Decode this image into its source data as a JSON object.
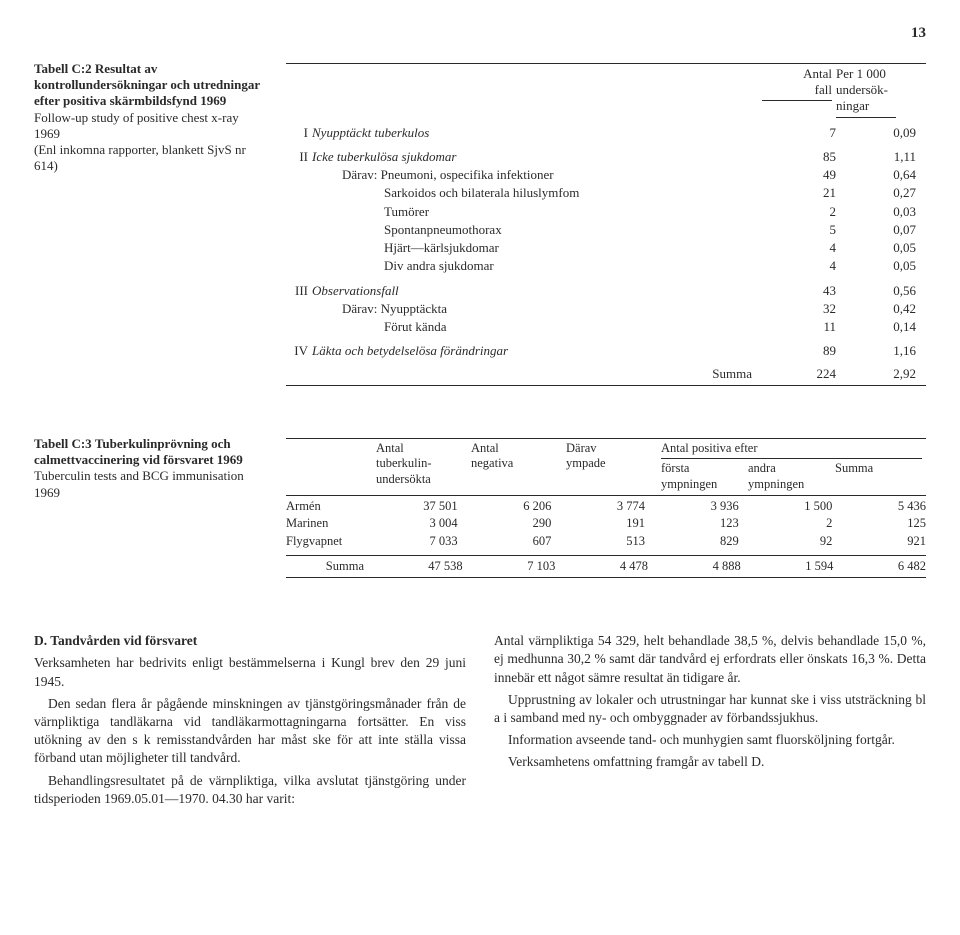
{
  "page_number": "13",
  "tableC2": {
    "label_prefix": "Tabell C:2",
    "label_rest": "Resultat av kontrollundersökningar och utredningar efter positiva skärmbildsfynd 1969",
    "subtitle": "Follow-up study of positive chest x-ray 1969",
    "note": "(Enl inkomna rapporter, blankett SjvS nr 614)",
    "col1_a": "Antal",
    "col1_b": "fall",
    "col2_a": "Per 1 000",
    "col2_b": "undersök-",
    "col2_c": "ningar",
    "groups": [
      {
        "roman": "I",
        "label": "Nyupptäckt tuberkulos",
        "n1": "7",
        "n2": "0,09",
        "subs": []
      },
      {
        "roman": "II",
        "label": "Icke tuberkulösa sjukdomar",
        "n1": "85",
        "n2": "1,11",
        "subs": [
          {
            "label": "Därav: Pneumoni, ospecifika infektioner",
            "n1": "49",
            "n2": "0,64"
          },
          {
            "label": "Sarkoidos och bilaterala hiluslymfom",
            "n1": "21",
            "n2": "0,27"
          },
          {
            "label": "Tumörer",
            "n1": "2",
            "n2": "0,03"
          },
          {
            "label": "Spontanpneumothorax",
            "n1": "5",
            "n2": "0,07"
          },
          {
            "label": "Hjärt—kärlsjukdomar",
            "n1": "4",
            "n2": "0,05"
          },
          {
            "label": "Div andra sjukdomar",
            "n1": "4",
            "n2": "0,05"
          }
        ]
      },
      {
        "roman": "III",
        "label": "Observationsfall",
        "n1": "43",
        "n2": "0,56",
        "subs": [
          {
            "label": "Därav: Nyupptäckta",
            "n1": "32",
            "n2": "0,42"
          },
          {
            "label": "Förut kända",
            "n1": "11",
            "n2": "0,14"
          }
        ]
      },
      {
        "roman": "IV",
        "label": "Läkta och betydelselösa förändringar",
        "n1": "89",
        "n2": "1,16",
        "subs": []
      }
    ],
    "sum_label": "Summa",
    "sum_n1": "224",
    "sum_n2": "2,92"
  },
  "tableC3": {
    "label_prefix": "Tabell C:3",
    "label_rest": "Tuberkulinprövning och calmettvaccinering vid försvaret 1969",
    "subtitle": "Tuberculin tests and BCG immunisation 1969",
    "head": {
      "c1a": "Antal",
      "c1b": "tuberkulin-",
      "c1c": "undersökta",
      "c2a": "Antal",
      "c2b": "negativa",
      "c3a": "Därav",
      "c3b": "ympade",
      "group_a": "Antal positiva efter",
      "g1a": "första",
      "g1b": "ympningen",
      "g2a": "andra",
      "g2b": "ympningen",
      "g3a": "Summa"
    },
    "rows": [
      {
        "label": "Armén",
        "v": [
          "37 501",
          "6 206",
          "3 774",
          "3 936",
          "1 500",
          "5 436"
        ]
      },
      {
        "label": "Marinen",
        "v": [
          "3 004",
          "290",
          "191",
          "123",
          "2",
          "125"
        ]
      },
      {
        "label": "Flygvapnet",
        "v": [
          "7 033",
          "607",
          "513",
          "829",
          "92",
          "921"
        ]
      }
    ],
    "sum_label": "Summa",
    "sum_v": [
      "47 538",
      "7 103",
      "4 478",
      "4 888",
      "1 594",
      "6 482"
    ]
  },
  "section_heading": "D. Tandvården vid försvaret",
  "left_paras": [
    "Verksamheten har bedrivits enligt bestämmelserna i Kungl brev den 29 juni 1945.",
    "Den sedan flera år pågående minskningen av tjänstgöringsmånader från de värnpliktiga tandläkarna vid tandläkarmottagningarna fortsätter. En viss utökning av den s k remisstandvården har måst ske för att inte ställa vissa förband utan möjligheter till tandvård.",
    "Behandlingsresultatet på de värnpliktiga, vilka avslutat tjänstgöring under tidsperioden 1969.05.01—1970. 04.30 har varit:"
  ],
  "right_paras": [
    "Antal värnpliktiga 54 329, helt behandlade 38,5 %, delvis behandlade 15,0 %, ej medhunna 30,2 % samt där tandvård ej erfordrats eller önskats 16,3 %. Detta innebär ett något sämre resultat än tidigare år.",
    "Upprustning av lokaler och utrustningar har kunnat ske i viss utsträckning bl a i samband med ny- och ombyggnader av förbandssjukhus.",
    "Information avseende tand- och munhygien samt fluorsköljning fortgår.",
    "Verksamhetens omfattning framgår av tabell D."
  ],
  "colors": {
    "text": "#2a2a2a",
    "background": "#ffffff",
    "rule": "#2a2a2a"
  }
}
